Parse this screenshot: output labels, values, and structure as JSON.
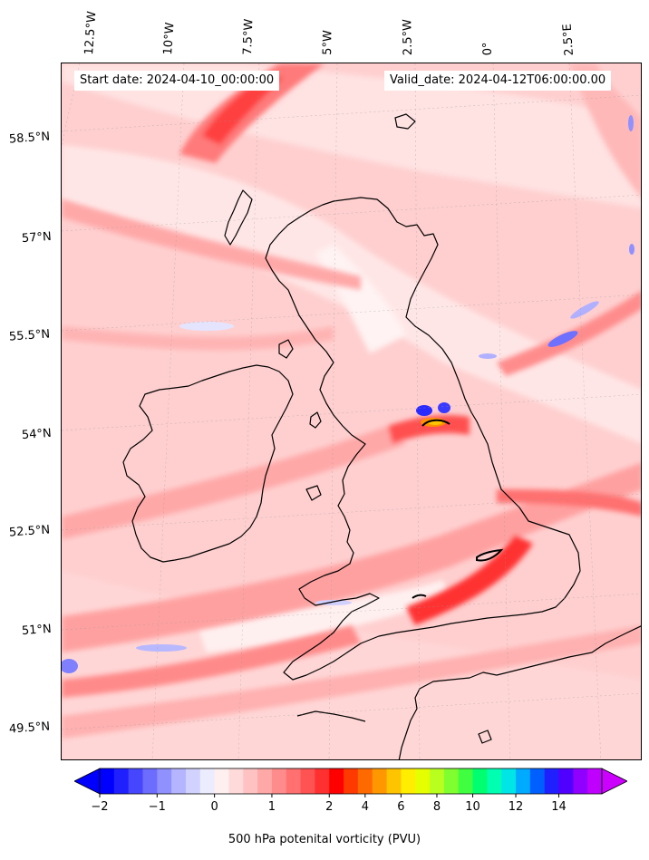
{
  "header": {
    "start_date": "Start date: 2024-04-10_00:00:00",
    "valid_date": "Valid_date: 2024-04-12T06:00:00.00"
  },
  "axes": {
    "lon_labels": [
      "12.5°W",
      "10°W",
      "7.5°W",
      "5°W",
      "2.5°W",
      "0°",
      "2.5°E"
    ],
    "lat_labels": [
      "58.5°N",
      "57°N",
      "55.5°N",
      "54°N",
      "52.5°N",
      "51°N",
      "49.5°N"
    ]
  },
  "colorbar": {
    "label": "500 hPa potenital vorticity (PVU)",
    "ticks": [
      "−2",
      "−1",
      "0",
      "1",
      "2",
      "4",
      "6",
      "8",
      "10",
      "12",
      "14"
    ],
    "levels": [
      -2,
      -1.75,
      -1.5,
      -1.25,
      -1,
      -0.75,
      -0.5,
      -0.25,
      0,
      0.25,
      0.5,
      0.75,
      1,
      1.25,
      1.5,
      1.75,
      2,
      2.5,
      3,
      3.5,
      4,
      4.5,
      5,
      5.5,
      6,
      6.5,
      7,
      7.5,
      8,
      9,
      10,
      11,
      12,
      13,
      14,
      15
    ],
    "colors": [
      "#0000ff",
      "#2020ff",
      "#4646ff",
      "#6c6cff",
      "#9090ff",
      "#b4b4ff",
      "#d2d2ff",
      "#ececff",
      "#fff0f0",
      "#ffdada",
      "#ffc2c2",
      "#ffa8a8",
      "#ff8c8c",
      "#ff7070",
      "#ff5252",
      "#ff3030",
      "#ff0000",
      "#ff3a00",
      "#ff6a00",
      "#ff9800",
      "#ffc400",
      "#ffee00",
      "#e6ff00",
      "#b8ff20",
      "#80ff30",
      "#40ff40",
      "#00ff70",
      "#00ffb0",
      "#00e6e6",
      "#00aaff",
      "#0060ff",
      "#2020ff",
      "#5000ff",
      "#9000ff",
      "#c000ff"
    ],
    "under_color": "#0000ff",
    "over_color": "#cc00ff"
  },
  "map": {
    "region": "British Isles",
    "background_color": "#ffd2d2"
  }
}
